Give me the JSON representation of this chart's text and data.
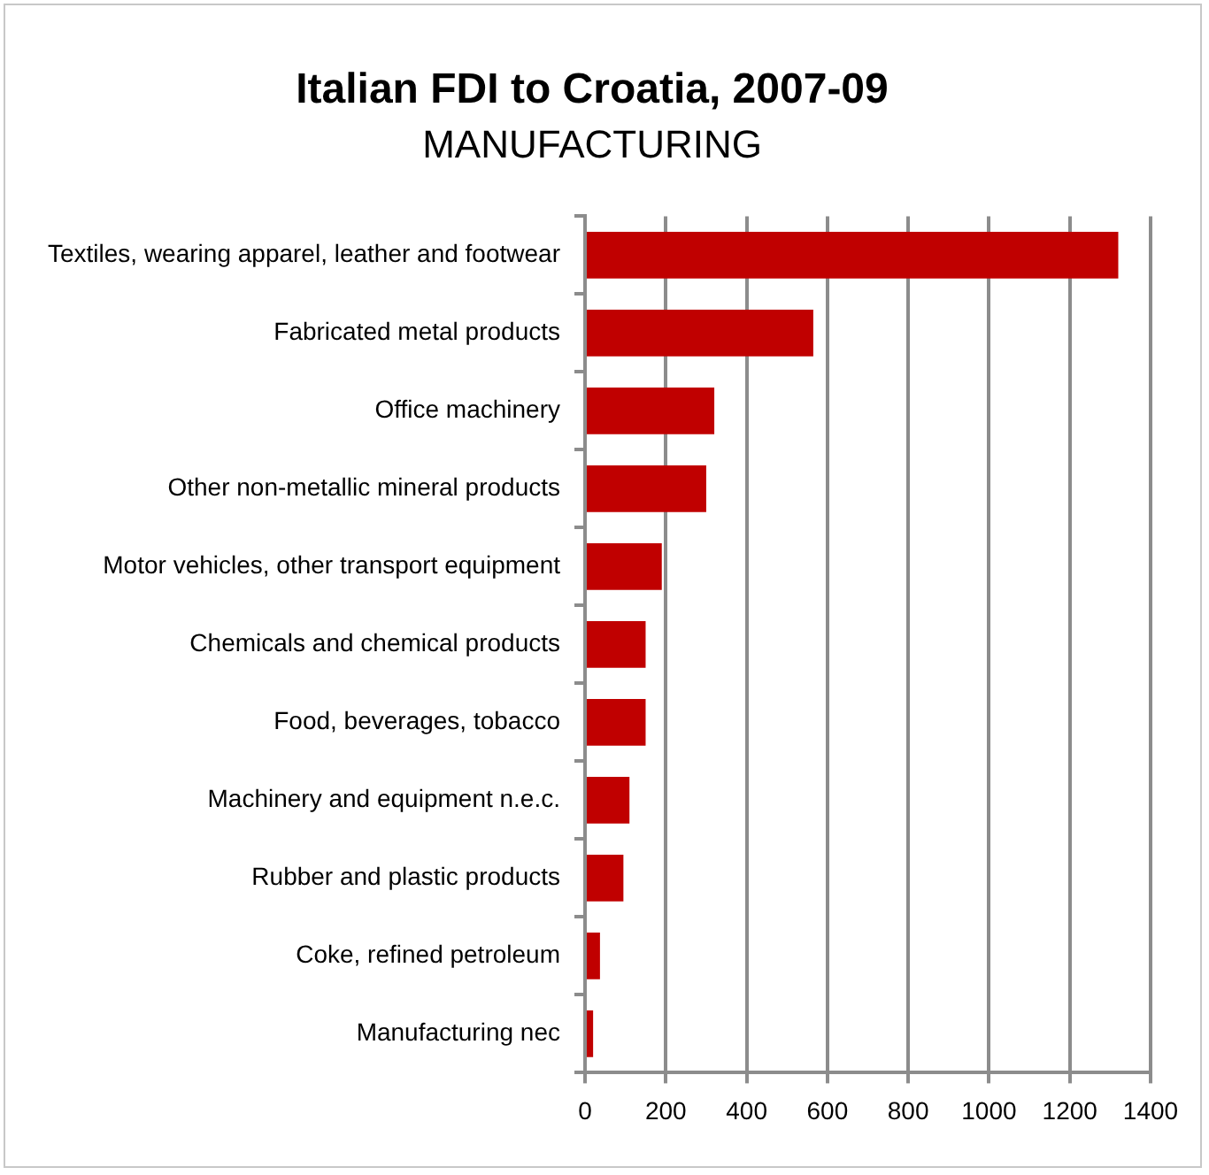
{
  "chart_data": {
    "type": "bar",
    "orientation": "horizontal",
    "title": "Italian FDI to Croatia, 2007-09",
    "subtitle": "MANUFACTURING",
    "categories": [
      "Textiles, wearing apparel, leather and footwear",
      "Fabricated metal products",
      "Office machinery",
      "Other non-metallic mineral products",
      "Motor vehicles, other transport equipment",
      "Chemicals and chemical products",
      "Food, beverages, tobacco",
      "Machinery and equipment n.e.c.",
      "Rubber and plastic products",
      "Coke, refined petroleum",
      "Manufacturing nec"
    ],
    "values": [
      1320,
      565,
      320,
      300,
      190,
      150,
      150,
      110,
      95,
      37,
      20
    ],
    "color": "#c00000",
    "xlim": [
      0,
      1400
    ],
    "xticks": [
      0,
      200,
      400,
      600,
      800,
      1000,
      1200,
      1400
    ],
    "grid": "x",
    "legend": false
  }
}
